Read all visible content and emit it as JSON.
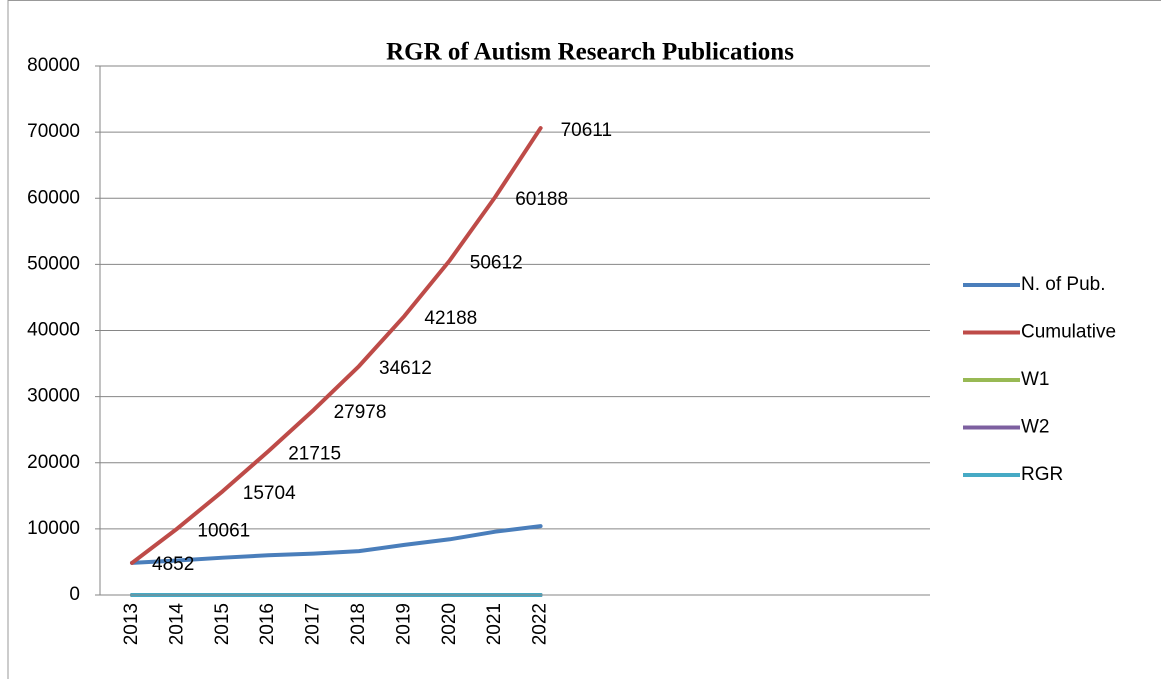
{
  "chart_data": {
    "type": "line",
    "title": "RGR of Autism Research Publications",
    "categories": [
      "2013",
      "2014",
      "2015",
      "2016",
      "2017",
      "2018",
      "2019",
      "2020",
      "2021",
      "2022"
    ],
    "series": [
      {
        "name": "N. of Pub.",
        "color": "#4a7ebb",
        "values": [
          4852,
          5209,
          5643,
          6011,
          6263,
          6634,
          7576,
          8424,
          9576,
          10423
        ]
      },
      {
        "name": "Cumulative",
        "color": "#be4b48",
        "values": [
          4852,
          10061,
          15704,
          21715,
          27978,
          34612,
          42188,
          50612,
          60188,
          70611
        ],
        "data_labels": true
      },
      {
        "name": "W1",
        "color": "#98b954",
        "values": [
          0,
          0,
          0,
          0,
          0,
          0,
          0,
          0,
          0,
          0
        ]
      },
      {
        "name": "W2",
        "color": "#7d60a0",
        "values": [
          0,
          0,
          0,
          0,
          0,
          0,
          0,
          0,
          0,
          0
        ]
      },
      {
        "name": "RGR",
        "color": "#46aac5",
        "values": [
          0,
          0,
          0,
          0,
          0,
          0,
          0,
          0,
          0,
          0
        ]
      }
    ],
    "ylim": [
      0,
      80000
    ],
    "yticks": [
      0,
      10000,
      20000,
      30000,
      40000,
      50000,
      60000,
      70000,
      80000
    ],
    "grid": true,
    "legend": "right"
  }
}
